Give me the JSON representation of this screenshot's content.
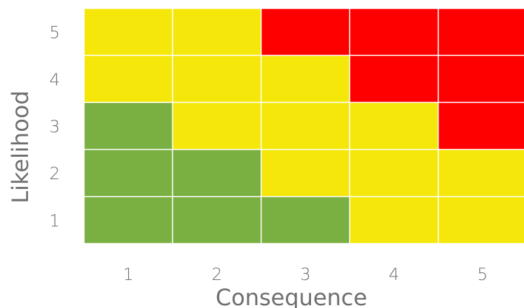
{
  "chart_data": {
    "type": "heatmap",
    "title": "",
    "xlabel": "Consequence",
    "ylabel": "Likelihood",
    "x_categories": [
      "1",
      "2",
      "3",
      "4",
      "5"
    ],
    "y_categories": [
      "1",
      "2",
      "3",
      "4",
      "5"
    ],
    "rows_top_to_bottom": [
      {
        "likelihood": "5",
        "cells": [
          "yellow",
          "yellow",
          "red",
          "red",
          "red"
        ]
      },
      {
        "likelihood": "4",
        "cells": [
          "yellow",
          "yellow",
          "yellow",
          "red",
          "red"
        ]
      },
      {
        "likelihood": "3",
        "cells": [
          "green",
          "yellow",
          "yellow",
          "yellow",
          "red"
        ]
      },
      {
        "likelihood": "2",
        "cells": [
          "green",
          "green",
          "yellow",
          "yellow",
          "yellow"
        ]
      },
      {
        "likelihood": "1",
        "cells": [
          "green",
          "green",
          "green",
          "yellow",
          "yellow"
        ]
      }
    ],
    "colors": {
      "green": "#7aaf42",
      "yellow": "#f6e70a",
      "red": "#ff0000",
      "grid_line": "#ffffff",
      "label_text": "#6e6e6e"
    },
    "legend": "none",
    "grid": true
  }
}
